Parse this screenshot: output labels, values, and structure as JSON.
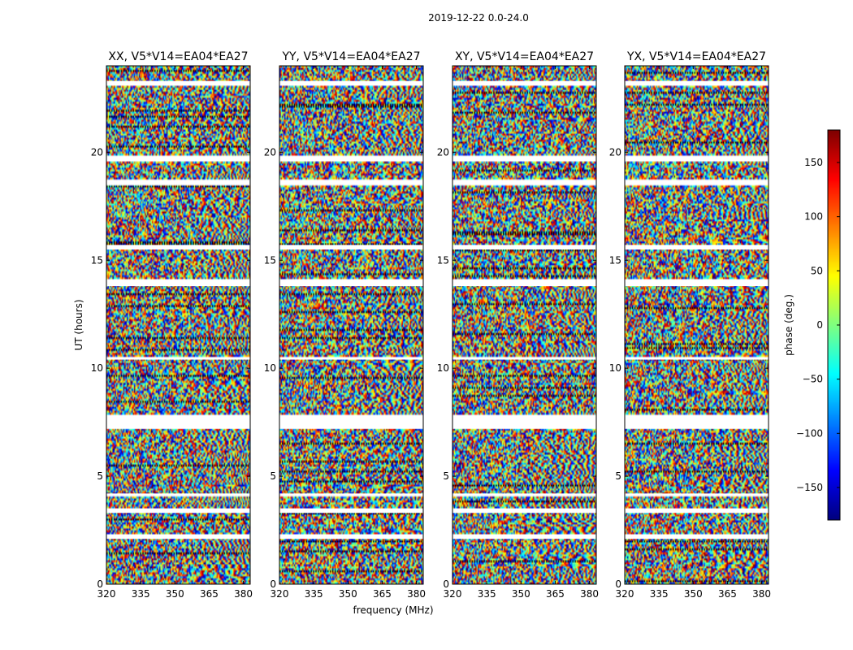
{
  "suptitle": "2019-12-22 0.0-24.0",
  "chart_data": {
    "type": "heatmap",
    "title": "2019-12-22 0.0-24.0",
    "xlabel": "frequency (MHz)",
    "ylabel": "UT (hours)",
    "xlim": [
      320,
      383
    ],
    "ylim": [
      0,
      24
    ],
    "xticks": [
      320,
      335,
      350,
      365,
      380
    ],
    "yticks": [
      0,
      5,
      10,
      15,
      20
    ],
    "panels": [
      {
        "title": "XX, V5*V14=EA04*EA27",
        "seed": 11
      },
      {
        "title": "YY, V5*V14=EA04*EA27",
        "seed": 23
      },
      {
        "title": "XY, V5*V14=EA04*EA27",
        "seed": 37
      },
      {
        "title": "YX, V5*V14=EA04*EA27",
        "seed": 53
      }
    ],
    "gaps_hours": [
      [
        2.1,
        2.3
      ],
      [
        3.3,
        3.5
      ],
      [
        4.1,
        4.2
      ],
      [
        7.2,
        7.8
      ],
      [
        10.4,
        10.5
      ],
      [
        13.8,
        14.1
      ],
      [
        15.5,
        15.7
      ],
      [
        18.5,
        18.7
      ],
      [
        19.6,
        19.8
      ],
      [
        23.1,
        23.3
      ]
    ],
    "colorbar": {
      "label": "phase (deg.)",
      "min": -180,
      "max": 180,
      "ticks": [
        -150,
        -100,
        -50,
        0,
        50,
        100,
        150
      ],
      "colormap": "jet"
    }
  }
}
